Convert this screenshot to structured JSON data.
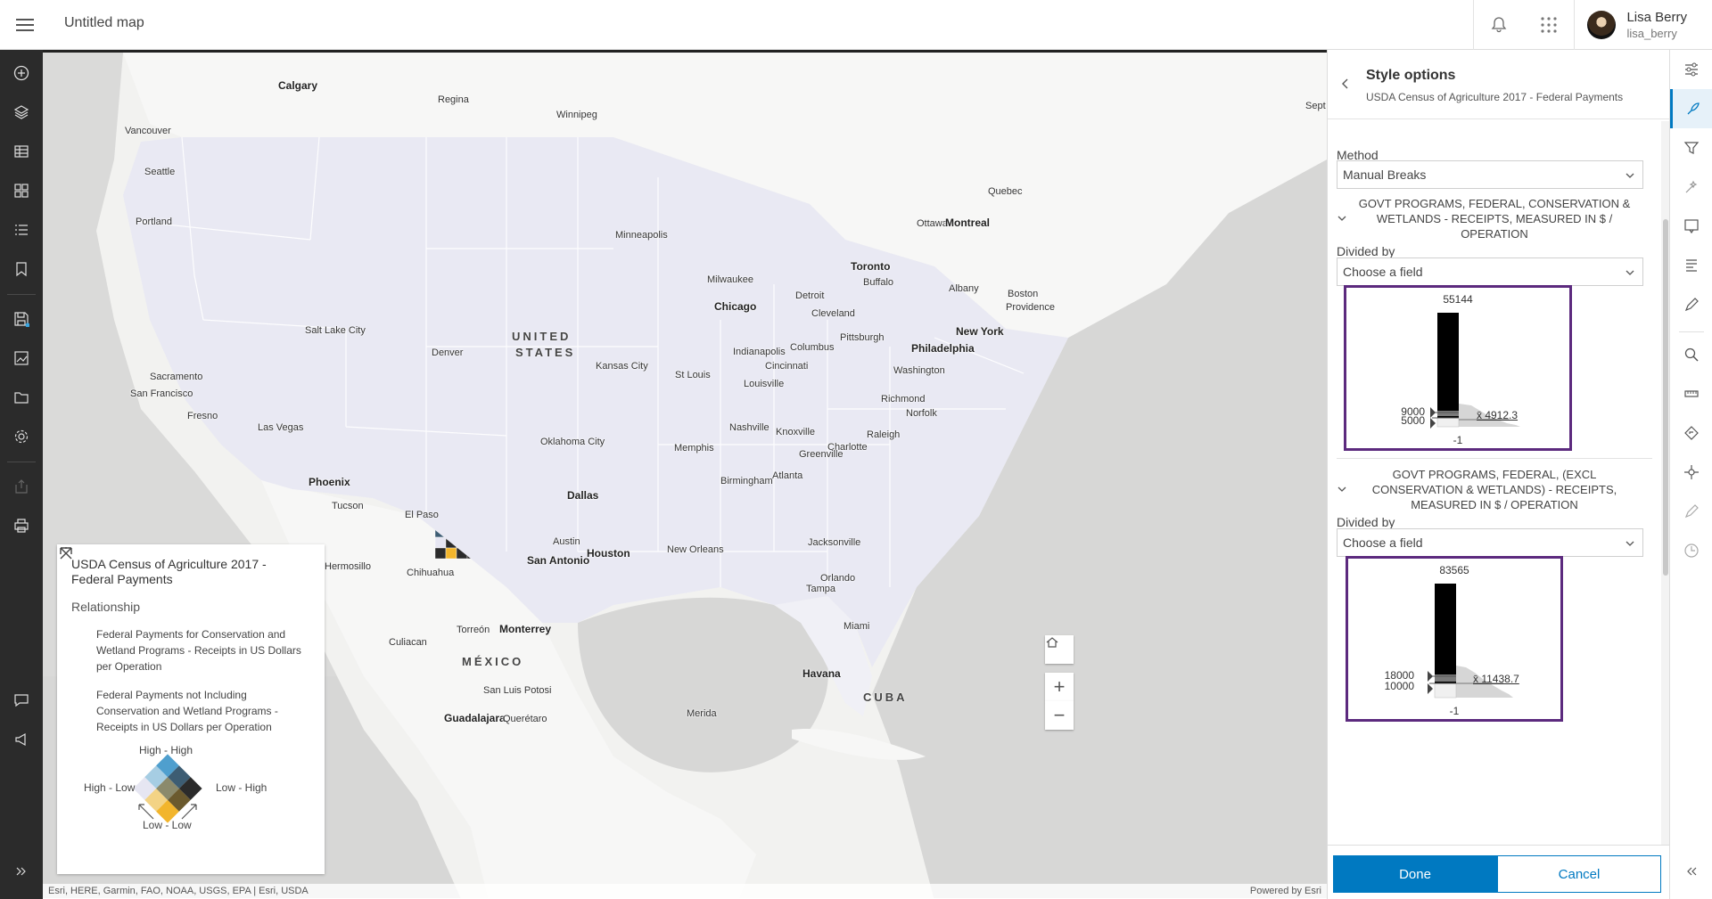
{
  "header": {
    "map_title": "Untitled map",
    "user_name": "Lisa Berry",
    "user_id": "lisa_berry",
    "icons": [
      "notifications-icon",
      "app-launcher-icon"
    ]
  },
  "left_toolbar": {
    "icons": [
      "add-icon",
      "layers-icon",
      "table-icon",
      "basemap-icon",
      "legend-icon",
      "bookmarks-icon",
      "save-icon",
      "create-presentation-icon",
      "open-icon",
      "settings-icon",
      "share-icon",
      "print-icon",
      "feedback-icon",
      "whats-new-icon",
      "expand-icon"
    ]
  },
  "map": {
    "labels": {
      "calgary": "Calgary",
      "regina": "Regina",
      "winnipeg": "Winnipeg",
      "vancouver": "Vancouver",
      "seattle": "Seattle",
      "portland": "Portland",
      "minneapolis": "Minneapolis",
      "milwaukee": "Milwaukee",
      "detroit": "Detroit",
      "chicago": "Chicago",
      "toronto": "Toronto",
      "buffalo": "Buffalo",
      "ottawa": "Ottawa",
      "montreal": "Montreal",
      "quebec": "Quebec",
      "albany": "Albany",
      "boston": "Boston",
      "providence": "Providence",
      "new_york": "New York",
      "philadelphia": "Philadelphia",
      "cleveland": "Cleveland",
      "pittsburgh": "Pittsburgh",
      "columbus": "Columbus",
      "indianapolis": "Indianapolis",
      "cincinnati": "Cincinnati",
      "washington": "Washington",
      "salt_lake_city": "Salt Lake City",
      "denver": "Denver",
      "kansas_city": "Kansas City",
      "st_louis": "St Louis",
      "louisville": "Louisville",
      "richmond": "Richmond",
      "norfolk": "Norfolk",
      "sacramento": "Sacramento",
      "san_francisco": "San Francisco",
      "fresno": "Fresno",
      "las_vegas": "Las Vegas",
      "nashville": "Nashville",
      "knoxville": "Knoxville",
      "raleigh": "Raleigh",
      "charlotte": "Charlotte",
      "greenville": "Greenville",
      "memphis": "Memphis",
      "oklahoma_city": "Oklahoma City",
      "atlanta": "Atlanta",
      "birmingham": "Birmingham",
      "phoenix": "Phoenix",
      "tucson": "Tucson",
      "el_paso": "El Paso",
      "dallas": "Dallas",
      "jacksonville": "Jacksonville",
      "austin": "Austin",
      "houston": "Houston",
      "new_orleans": "New Orleans",
      "san_antonio": "San Antonio",
      "orlando": "Orlando",
      "tampa": "Tampa",
      "miami": "Miami",
      "hermosillo": "Hermosillo",
      "chihuahua": "Chihuahua",
      "culiacan": "Culiacan",
      "torreon": "Torreón",
      "monterrey": "Monterrey",
      "san_luis_potosi": "San Luis Potosi",
      "guadalajara": "Guadalajara",
      "queretaro": "Querétaro",
      "merida": "Merida",
      "havana": "Havana",
      "cuba": "CUBA",
      "mexico": "MÉXICO",
      "united": "UNITED",
      "states": "STATES",
      "sept": "Sept"
    },
    "attribution": "Esri, HERE, Garmin, FAO, NOAA, USGS, EPA | Esri, USDA",
    "powered_by": "Powered by Esri",
    "controls": [
      "home-icon",
      "zoom-in-icon",
      "zoom-out-icon"
    ]
  },
  "legend": {
    "title": "USDA Census of Agriculture 2017 - Federal Payments",
    "subtitle": "Relationship",
    "item1": "Federal Payments for Conservation and Wetland Programs - Receipts in US Dollars per Operation",
    "item2": "Federal Payments not Including Conservation and Wetland Programs - Receipts in US Dollars per Operation",
    "high_high": "High - High",
    "high_low": "High - Low",
    "low_high": "Low - High",
    "low_low": "Low - Low",
    "colors": {
      "high_high": "#2b2b2b",
      "mid_top_left": "#6b5a2e",
      "mid_top_right": "#3d5d73",
      "high_low": "#f2b52c",
      "center": "#8b8a6c",
      "low_high": "#4f9fce",
      "mid_bottom_left": "#f3d385",
      "mid_bottom_right": "#a6cde3",
      "low_low": "#e6e6f2"
    }
  },
  "panel": {
    "title": "Style options",
    "subtitle": "USDA Census of Agriculture 2017 - Federal Payments",
    "method_label": "Method",
    "method_value": "Manual Breaks",
    "field1": {
      "name": "GOVT PROGRAMS, FEDERAL, CONSERVATION & WETLANDS - RECEIPTS, MEASURED IN $ / OPERATION",
      "divided_by_label": "Divided by",
      "divided_by_value": "Choose a field",
      "hist_max": "55144",
      "hist_min": "-1",
      "break_high": "9000",
      "break_low": "5000",
      "average": "x̄ 4912.3"
    },
    "field2": {
      "name": "GOVT PROGRAMS, FEDERAL, (EXCL CONSERVATION & WETLANDS) - RECEIPTS, MEASURED IN $ / OPERATION",
      "divided_by_label": "Divided by",
      "divided_by_value": "Choose a field",
      "hist_max": "83565",
      "hist_min": "-1",
      "break_high": "18000",
      "break_low": "10000",
      "average": "x̄ 11438.7"
    },
    "done_label": "Done",
    "cancel_label": "Cancel"
  },
  "right_strip": {
    "icons": [
      "properties-icon",
      "styles-icon",
      "filter-icon",
      "effects-icon",
      "popups-icon",
      "labels-icon",
      "sketch-icon",
      "search-icon",
      "measure-icon",
      "directions-icon",
      "location-icon",
      "edit-icon",
      "time-icon",
      "collapse-icon"
    ],
    "accent": "#0079c1"
  }
}
